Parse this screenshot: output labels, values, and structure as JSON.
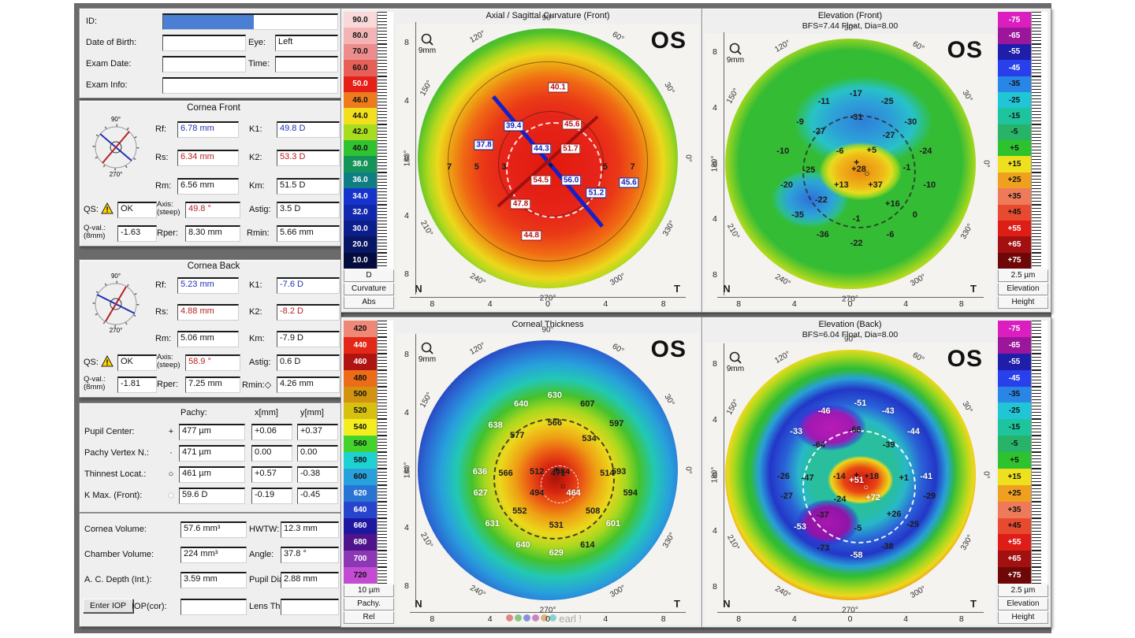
{
  "patient": {
    "id_label": "ID:",
    "id_value": "",
    "dob_label": "Date of Birth:",
    "dob_value": "",
    "eye_label": "Eye:",
    "eye_value": "Left",
    "exam_date_label": "Exam Date:",
    "exam_date_value": "",
    "time_label": "Time:",
    "time_value": "",
    "exam_info_label": "Exam Info:",
    "exam_info_value": ""
  },
  "cornea_front": {
    "title": "Cornea Front",
    "rf_label": "Rf:",
    "rf": "6.78 mm",
    "k1_label": "K1:",
    "k1": "49.8 D",
    "rs_label": "Rs:",
    "rs": "6.34 mm",
    "k2_label": "K2:",
    "k2": "53.3 D",
    "rm_label": "Rm:",
    "rm": "6.56 mm",
    "km_label": "Km:",
    "km": "51.5 D",
    "qs_label": "QS:",
    "qs": "OK",
    "axis_label1": "Axis:",
    "axis_label2": "(steep)",
    "axis": "49.8 °",
    "astig_label": "Astig:",
    "astig": "3.5 D",
    "qval_label1": "Q-val.:",
    "qval_label2": "(8mm)",
    "qval": "-1.63",
    "rper_label": "Rper:",
    "rper": "8.30 mm",
    "rmin_label": "Rmin:",
    "rmin": "5.66 mm",
    "rmin_sym": ""
  },
  "cornea_back": {
    "title": "Cornea Back",
    "rf_label": "Rf:",
    "rf": "5.23 mm",
    "k1_label": "K1:",
    "k1": "-7.6 D",
    "rs_label": "Rs:",
    "rs": "4.88 mm",
    "k2_label": "K2:",
    "k2": "-8.2 D",
    "rm_label": "Rm:",
    "rm": "5.06 mm",
    "km_label": "Km:",
    "km": "-7.9 D",
    "qs_label": "QS:",
    "qs": "OK",
    "axis_label1": "Axis:",
    "axis_label2": "(steep)",
    "axis": "58.9 °",
    "astig_label": "Astig:",
    "astig": "0.6 D",
    "qval_label1": "Q-val.:",
    "qval_label2": "(8mm)",
    "qval": "-1.81",
    "rper_label": "Rper:",
    "rper": "7.25 mm",
    "rmin_label": "Rmin:",
    "rmin": "4.26 mm",
    "rmin_sym": "◇"
  },
  "pachy_table": {
    "h_pachy": "Pachy:",
    "h_x": "x[mm]",
    "h_y": "y[mm]",
    "rows": [
      {
        "label": "Pupil Center:",
        "sym": "+",
        "pachy": "477 µm",
        "x": "+0.06",
        "y": "+0.37"
      },
      {
        "label": "Pachy Vertex N.:",
        "sym": "·",
        "pachy": "471 µm",
        "x": "0.00",
        "y": "0.00"
      },
      {
        "label": "Thinnest Locat.:",
        "sym": "○",
        "pachy": "461 µm",
        "x": "+0.57",
        "y": "-0.38"
      },
      {
        "label": "K Max. (Front):",
        "sym": "●",
        "pachy": "59.6 D",
        "x": "-0.19",
        "y": "-0.45"
      }
    ]
  },
  "volumes": {
    "rows": [
      {
        "label": "Cornea Volume:",
        "value": "57.6 mm³",
        "label2": "HWTW:",
        "value2": "12.3 mm"
      },
      {
        "label": "Chamber Volume:",
        "value": "224 mm³",
        "label2": "Angle:",
        "value2": "37.8 °"
      },
      {
        "label": "A. C. Depth (Int.):",
        "value": "3.59 mm",
        "label2": "Pupil Dia:",
        "value2": "2.88 mm"
      }
    ],
    "iop_button": "Enter IOP",
    "iop_label": "IOP(cor):",
    "iop_value": "",
    "lens_label": "Lens Th.:",
    "lens_value": ""
  },
  "common": {
    "ring_degrees": [
      90,
      120,
      150,
      180,
      210,
      240,
      270,
      300,
      330,
      0,
      30,
      60
    ],
    "axis_ticks": [
      "8",
      "4",
      "0",
      "4",
      "8"
    ],
    "nasal": "N",
    "temporal": "T",
    "dial_top": "90°",
    "dial_bottom": "270°"
  },
  "watermark": {
    "text": "earl !",
    "dots": [
      "#d03030",
      "#30a030",
      "#3040d0",
      "#a030a0",
      "#d08020",
      "#30b8b8"
    ]
  },
  "maps": [
    {
      "title": "Axial / Sagittal Curvature (Front)",
      "subtitle": "",
      "eye": "OS",
      "mag": "9mm",
      "scale": {
        "footer": [
          "D",
          "Curvature",
          "Abs"
        ],
        "entries": [
          [
            "90.0",
            "#f8d8d8"
          ],
          [
            "80.0",
            "#f2b4b4"
          ],
          [
            "70.0",
            "#ec8c8c"
          ],
          [
            "60.0",
            "#e66058"
          ],
          [
            "50.0",
            "#e42018"
          ],
          [
            "46.0",
            "#ee7c1c"
          ],
          [
            "44.0",
            "#f2e01e"
          ],
          [
            "42.0",
            "#a8dc1e"
          ],
          [
            "40.0",
            "#30c230"
          ],
          [
            "38.0",
            "#149458"
          ],
          [
            "36.0",
            "#0e7e84"
          ],
          [
            "34.0",
            "#1634cc"
          ],
          [
            "32.0",
            "#1228ac"
          ],
          [
            "30.0",
            "#0c1e8c"
          ],
          [
            "20.0",
            "#081664"
          ],
          [
            "10.0",
            "#040c3e"
          ]
        ]
      },
      "points": [
        [
          "40.1",
          "r",
          53.4,
          22
        ],
        [
          "45.6",
          "r",
          58,
          35
        ],
        [
          "39.4",
          "b",
          38.7,
          35.7
        ],
        [
          "37.8",
          "b",
          28.9,
          42.3
        ],
        [
          "44.3",
          "b",
          47.9,
          43.7
        ],
        [
          "51.7",
          "r",
          57.5,
          43.7
        ],
        [
          "54.5",
          "r",
          47.7,
          54.7
        ],
        [
          "56.0",
          "b",
          57.7,
          54.7
        ],
        [
          "51.2",
          "b",
          66,
          59
        ],
        [
          "45.6",
          "b",
          76.8,
          55.5
        ],
        [
          "47.8",
          "r",
          41,
          62.9
        ],
        [
          "44.8",
          "r",
          44.6,
          73.9
        ],
        [
          "7",
          "d",
          17.5,
          50
        ],
        [
          "5",
          "d",
          26.5,
          50
        ],
        [
          "3",
          "d",
          35.5,
          50
        ],
        [
          "5",
          "d",
          69,
          50
        ],
        [
          "7",
          "d",
          78,
          50
        ],
        [
          "+",
          "k",
          51,
          49.5
        ]
      ]
    },
    {
      "title": "Elevation (Front)",
      "subtitle": "BFS=7.44 Float, Dia=8.00",
      "eye": "OS",
      "mag": "9mm",
      "scale": {
        "footer": [
          "2.5 µm",
          "Elevation",
          "Height"
        ],
        "entries": [
          [
            "-75",
            "#da1ec0"
          ],
          [
            "-65",
            "#9c169c"
          ],
          [
            "-55",
            "#1e1eaa"
          ],
          [
            "-45",
            "#2840ec"
          ],
          [
            "-35",
            "#2a86e6"
          ],
          [
            "-25",
            "#20c6d6"
          ],
          [
            "-15",
            "#1ec49e"
          ],
          [
            "-5",
            "#28b468"
          ],
          [
            "+5",
            "#2ec22e"
          ],
          [
            "+15",
            "#eee01e"
          ],
          [
            "+25",
            "#efa01e"
          ],
          [
            "+35",
            "#ef7a5a"
          ],
          [
            "+45",
            "#e84a30"
          ],
          [
            "+55",
            "#de1e16"
          ],
          [
            "+65",
            "#a31010"
          ],
          [
            "+75",
            "#6e0808"
          ]
        ]
      },
      "points": [
        [
          "-17",
          "d",
          52,
          21.7
        ],
        [
          "-11",
          "d",
          41,
          24.7
        ],
        [
          "-25",
          "d",
          62.8,
          24.7
        ],
        [
          "-9",
          "d",
          32.8,
          32.1
        ],
        [
          "-31",
          "d",
          52.2,
          30.2
        ],
        [
          "-30",
          "d",
          70.8,
          32.1
        ],
        [
          "-27",
          "d",
          39.3,
          35.4
        ],
        [
          "-27",
          "d",
          63.3,
          36.8
        ],
        [
          "-10",
          "d",
          26.9,
          42.6
        ],
        [
          "-6",
          "d",
          46.5,
          42.6
        ],
        [
          "+5",
          "d",
          57.4,
          42.3
        ],
        [
          "-24",
          "d",
          76,
          42.6
        ],
        [
          "-25",
          "d",
          35.9,
          49.5
        ],
        [
          "+28",
          "d",
          53,
          49.2
        ],
        [
          "-1",
          "d",
          69.5,
          48.6
        ],
        [
          "-20",
          "d",
          28.2,
          54.9
        ],
        [
          "+13",
          "d",
          47,
          54.9
        ],
        [
          "+37",
          "d",
          58.7,
          54.9
        ],
        [
          "-10",
          "d",
          77.3,
          54.9
        ],
        [
          "-22",
          "d",
          40.1,
          60.4
        ],
        [
          "+16",
          "d",
          64.6,
          61.8
        ],
        [
          "-35",
          "d",
          32,
          65.7
        ],
        [
          "-1",
          "d",
          52.2,
          67
        ],
        [
          "0",
          "d",
          72.3,
          65.7
        ],
        [
          "-36",
          "d",
          40.6,
          72.8
        ],
        [
          "-6",
          "d",
          63.8,
          72.8
        ],
        [
          "-22",
          "d",
          52.2,
          76.1
        ],
        [
          "+",
          "k",
          52.2,
          46.5
        ],
        [
          "○",
          "k",
          55.8,
          50.5
        ]
      ]
    },
    {
      "title": "Corneal Thickness",
      "subtitle": "",
      "eye": "OS",
      "mag": "9mm",
      "scale": {
        "footer": [
          "10 µm",
          "Pachy.",
          "Rel"
        ],
        "entries": [
          [
            "420",
            "#f08878"
          ],
          [
            "440",
            "#e42818"
          ],
          [
            "460",
            "#b01410"
          ],
          [
            "480",
            "#ec6c18"
          ],
          [
            "500",
            "#d29410"
          ],
          [
            "520",
            "#d8c010"
          ],
          [
            "540",
            "#f4ee20"
          ],
          [
            "560",
            "#44d22c"
          ],
          [
            "580",
            "#1ed2d2"
          ],
          [
            "600",
            "#28a0dc"
          ],
          [
            "620",
            "#2874d4"
          ],
          [
            "640",
            "#2744cc"
          ],
          [
            "660",
            "#1e17a0"
          ],
          [
            "680",
            "#4f148c"
          ],
          [
            "700",
            "#8c38b4"
          ],
          [
            "720",
            "#c44cd4"
          ]
        ]
      },
      "points": [
        [
          "630",
          "w",
          52.3,
          21.4
        ],
        [
          "640",
          "w",
          41.2,
          24.2
        ],
        [
          "607",
          "d",
          63.1,
          24.2
        ],
        [
          "638",
          "w",
          32.7,
          31.6
        ],
        [
          "566",
          "d",
          52.3,
          30.8
        ],
        [
          "597",
          "d",
          72.7,
          31
        ],
        [
          "577",
          "d",
          39.9,
          35.2
        ],
        [
          "534",
          "d",
          63.7,
          36.3
        ],
        [
          "636",
          "w",
          27.6,
          47.5
        ],
        [
          "512",
          "d",
          46.4,
          47.5
        ],
        [
          "484",
          "d",
          54.9,
          47.5
        ],
        [
          "593",
          "d",
          73.5,
          47.5
        ],
        [
          "566",
          "d",
          36.1,
          48.1
        ],
        [
          "471",
          "d",
          53.4,
          48.1
        ],
        [
          "514",
          "d",
          69.6,
          48.1
        ],
        [
          "627",
          "w",
          27.8,
          54.9
        ],
        [
          "494",
          "d",
          46.4,
          54.9
        ],
        [
          "464",
          "w",
          58.5,
          54.9
        ],
        [
          "594",
          "d",
          77.3,
          54.9
        ],
        [
          "552",
          "d",
          40.7,
          61
        ],
        [
          "508",
          "d",
          64.9,
          61
        ],
        [
          "631",
          "w",
          31.7,
          65.4
        ],
        [
          "531",
          "d",
          52.8,
          65.9
        ],
        [
          "601",
          "w",
          71.6,
          65.4
        ],
        [
          "640",
          "w",
          41.8,
          72.8
        ],
        [
          "614",
          "d",
          63.1,
          72.8
        ],
        [
          "629",
          "w",
          52.8,
          75.5
        ],
        [
          "+",
          "k",
          52.8,
          46.8
        ],
        [
          "○",
          "k",
          55,
          52.5
        ]
      ]
    },
    {
      "title": "Elevation (Back)",
      "subtitle": "BFS=6.04 Float, Dia=8.00",
      "eye": "OS",
      "mag": "9mm",
      "scale": {
        "footer": [
          "2.5 µm",
          "Elevation",
          "Height"
        ],
        "entries": [
          [
            "-75",
            "#da1ec0"
          ],
          [
            "-65",
            "#9c169c"
          ],
          [
            "-55",
            "#1e1eaa"
          ],
          [
            "-45",
            "#2840ec"
          ],
          [
            "-35",
            "#2a86e6"
          ],
          [
            "-25",
            "#20c6d6"
          ],
          [
            "-15",
            "#1ec49e"
          ],
          [
            "-5",
            "#28b468"
          ],
          [
            "+5",
            "#2ec22e"
          ],
          [
            "+15",
            "#eee01e"
          ],
          [
            "+25",
            "#efa01e"
          ],
          [
            "+35",
            "#ef7a5a"
          ],
          [
            "+45",
            "#e84a30"
          ],
          [
            "+55",
            "#de1e16"
          ],
          [
            "+65",
            "#a31010"
          ],
          [
            "+75",
            "#6e0808"
          ]
        ]
      },
      "points": [
        [
          "-51",
          "w",
          53.5,
          21.4
        ],
        [
          "-46",
          "w",
          41.1,
          24.2
        ],
        [
          "-43",
          "w",
          63.1,
          24.2
        ],
        [
          "-65",
          "d",
          51.7,
          31
        ],
        [
          "-33",
          "w",
          31.5,
          31.6
        ],
        [
          "-44",
          "w",
          71.8,
          31.6
        ],
        [
          "-64",
          "d",
          39.3,
          36.3
        ],
        [
          "-39",
          "d",
          63.3,
          36.3
        ],
        [
          "-26",
          "d",
          27.1,
          47.5
        ],
        [
          "-14",
          "d",
          46.3,
          47.5
        ],
        [
          "+18",
          "d",
          57.4,
          47.5
        ],
        [
          "-41",
          "w",
          76.2,
          47.5
        ],
        [
          "-47",
          "d",
          35.4,
          48.1
        ],
        [
          "+51",
          "w",
          52.2,
          48.9
        ],
        [
          "+1",
          "d",
          68.5,
          48.1
        ],
        [
          "-27",
          "d",
          28.2,
          54.4
        ],
        [
          "-24",
          "d",
          46.5,
          55.5
        ],
        [
          "+72",
          "w",
          57.9,
          54.9
        ],
        [
          "-29",
          "d",
          77.3,
          54.4
        ],
        [
          "-37",
          "d",
          40.6,
          61.3
        ],
        [
          "+26",
          "d",
          65.1,
          61
        ],
        [
          "-53",
          "w",
          32.8,
          65.4
        ],
        [
          "-5",
          "d",
          52.7,
          65.9
        ],
        [
          "-25",
          "d",
          71.6,
          64.6
        ],
        [
          "-73",
          "d",
          40.8,
          72.8
        ],
        [
          "-38",
          "d",
          62.8,
          72.3
        ],
        [
          "-58",
          "w",
          52.2,
          75.5
        ],
        [
          "+",
          "k",
          52.2,
          46.8
        ],
        [
          "○",
          "w",
          55.5,
          51.5
        ]
      ]
    }
  ]
}
